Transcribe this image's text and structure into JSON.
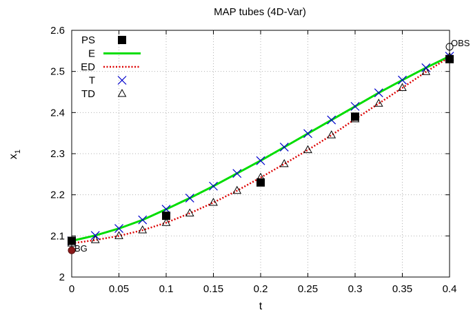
{
  "chart_data": {
    "type": "line",
    "title": "MAP tubes (4D-Var)",
    "xlabel": "t",
    "ylabel": "x",
    "ylabel_subscript": "1",
    "xlim": [
      0,
      0.4
    ],
    "ylim": [
      2,
      2.6
    ],
    "xticks": [
      0,
      0.05,
      0.1,
      0.15,
      0.2,
      0.25,
      0.3,
      0.35,
      0.4
    ],
    "xtick_labels": [
      "0",
      "0.05",
      "0.1",
      "0.15",
      "0.2",
      "0.25",
      "0.3",
      "0.35",
      "0.4"
    ],
    "yticks": [
      2,
      2.1,
      2.2,
      2.3,
      2.4,
      2.5,
      2.6
    ],
    "ytick_labels": [
      "2",
      "2.1",
      "2.2",
      "2.3",
      "2.4",
      "2.5",
      "2.6"
    ],
    "grid": true,
    "legend_position": "top-left",
    "colors": {
      "E": "#00dd00",
      "ED": "#dd0000",
      "T": "#0000cc",
      "TD": "#000000",
      "PS": "#000000",
      "BG": "#8b1a1a"
    },
    "series": [
      {
        "name": "PS",
        "style": "square",
        "x": [
          0,
          0.1,
          0.2,
          0.3,
          0.4
        ],
        "y": [
          2.088,
          2.149,
          2.23,
          2.39,
          2.53
        ]
      },
      {
        "name": "E",
        "style": "solid-line",
        "x": [
          0,
          0.025,
          0.05,
          0.075,
          0.1,
          0.125,
          0.15,
          0.175,
          0.2,
          0.225,
          0.25,
          0.275,
          0.3,
          0.325,
          0.35,
          0.375,
          0.4
        ],
        "y": [
          2.088,
          2.101,
          2.118,
          2.139,
          2.165,
          2.192,
          2.221,
          2.252,
          2.283,
          2.316,
          2.349,
          2.382,
          2.415,
          2.448,
          2.479,
          2.509,
          2.537
        ]
      },
      {
        "name": "ED",
        "style": "dotted-line",
        "x": [
          0,
          0.025,
          0.05,
          0.075,
          0.1,
          0.125,
          0.15,
          0.175,
          0.2,
          0.225,
          0.25,
          0.275,
          0.3,
          0.325,
          0.35,
          0.375,
          0.4
        ],
        "y": [
          2.082,
          2.09,
          2.1,
          2.114,
          2.132,
          2.155,
          2.181,
          2.21,
          2.242,
          2.275,
          2.309,
          2.345,
          2.384,
          2.422,
          2.46,
          2.499,
          2.535
        ]
      },
      {
        "name": "T",
        "style": "cross",
        "x": [
          0,
          0.025,
          0.05,
          0.075,
          0.1,
          0.125,
          0.15,
          0.175,
          0.2,
          0.225,
          0.25,
          0.275,
          0.3,
          0.325,
          0.35,
          0.375,
          0.4
        ],
        "y": [
          2.088,
          2.101,
          2.118,
          2.139,
          2.165,
          2.192,
          2.221,
          2.252,
          2.283,
          2.316,
          2.349,
          2.382,
          2.415,
          2.448,
          2.479,
          2.509,
          2.537
        ]
      },
      {
        "name": "TD",
        "style": "triangle",
        "x": [
          0,
          0.025,
          0.05,
          0.075,
          0.1,
          0.125,
          0.15,
          0.175,
          0.2,
          0.225,
          0.25,
          0.275,
          0.3,
          0.325,
          0.35,
          0.375,
          0.4
        ],
        "y": [
          2.082,
          2.09,
          2.1,
          2.114,
          2.132,
          2.155,
          2.181,
          2.21,
          2.242,
          2.275,
          2.309,
          2.345,
          2.384,
          2.422,
          2.46,
          2.499,
          2.535
        ]
      }
    ],
    "annotations": [
      {
        "text": "BG",
        "x": 0,
        "y": 2.065,
        "marker": "filled-circle"
      },
      {
        "text": "OBS",
        "x": 0.4,
        "y": 2.56,
        "marker": "open-circle"
      }
    ]
  }
}
